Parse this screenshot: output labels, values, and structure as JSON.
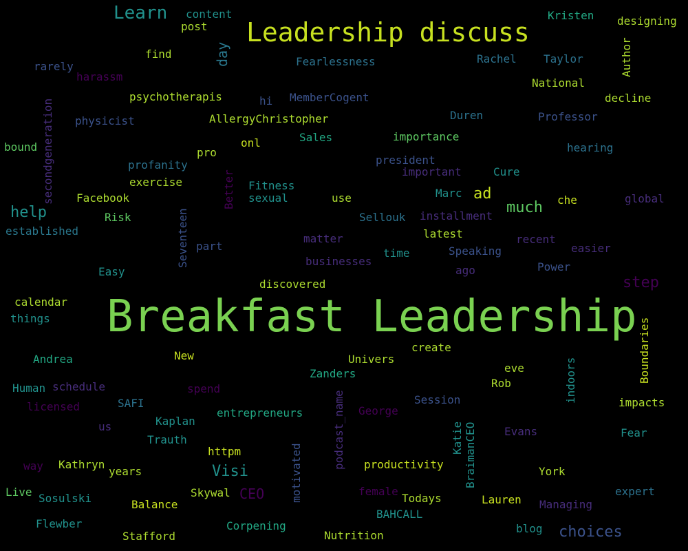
{
  "palette": {
    "lime": "#7ad151",
    "green": "#5ec962",
    "yellow": "#c7e020",
    "teal": "#21918c",
    "cyan": "#25858e",
    "blue": "#2c728e",
    "indigo": "#3b528b",
    "purple": "#472d7b",
    "violet": "#440154",
    "sea": "#2a788e",
    "mint": "#22a884",
    "light": "#addc30"
  },
  "words": [
    {
      "text": "Breakfast Leadership",
      "color": "lime",
      "size": 64
    },
    {
      "text": "Leadership discuss",
      "color": "yellow",
      "size": 38
    },
    {
      "text": "Learn",
      "color": "teal",
      "size": 26
    },
    {
      "text": "content",
      "color": "teal",
      "size": 16
    },
    {
      "text": "post",
      "color": "light",
      "size": 16
    },
    {
      "text": "Kristen",
      "color": "mint",
      "size": 16
    },
    {
      "text": "designing",
      "color": "light",
      "size": 16
    },
    {
      "text": "day",
      "color": "sea",
      "size": 20
    },
    {
      "text": "Author",
      "color": "light",
      "size": 16
    },
    {
      "text": "find",
      "color": "light",
      "size": 16
    },
    {
      "text": "rarely",
      "color": "indigo",
      "size": 16
    },
    {
      "text": "harassm",
      "color": "violet",
      "size": 16
    },
    {
      "text": "Fearlessness",
      "color": "blue",
      "size": 16
    },
    {
      "text": "Rachel",
      "color": "blue",
      "size": 16
    },
    {
      "text": "Taylor",
      "color": "blue",
      "size": 16
    },
    {
      "text": "National",
      "color": "light",
      "size": 16
    },
    {
      "text": "psychotherapis",
      "color": "light",
      "size": 16
    },
    {
      "text": "hi",
      "color": "indigo",
      "size": 16
    },
    {
      "text": "MemberCogent",
      "color": "indigo",
      "size": 16
    },
    {
      "text": "decline",
      "color": "light",
      "size": 16
    },
    {
      "text": "secondgeneration",
      "color": "purple",
      "size": 16
    },
    {
      "text": "physicist",
      "color": "indigo",
      "size": 16
    },
    {
      "text": "AllergyChristopher",
      "color": "light",
      "size": 16
    },
    {
      "text": "Duren",
      "color": "blue",
      "size": 16
    },
    {
      "text": "Professor",
      "color": "indigo",
      "size": 16
    },
    {
      "text": "bound",
      "color": "green",
      "size": 16
    },
    {
      "text": "onl",
      "color": "yellow",
      "size": 16
    },
    {
      "text": "Sales",
      "color": "mint",
      "size": 16
    },
    {
      "text": "importance",
      "color": "green",
      "size": 16
    },
    {
      "text": "hearing",
      "color": "blue",
      "size": 16
    },
    {
      "text": "pro",
      "color": "light",
      "size": 16
    },
    {
      "text": "president",
      "color": "indigo",
      "size": 16
    },
    {
      "text": "profanity",
      "color": "blue",
      "size": 16
    },
    {
      "text": "important",
      "color": "purple",
      "size": 16
    },
    {
      "text": "Cure",
      "color": "teal",
      "size": 16
    },
    {
      "text": "exercise",
      "color": "light",
      "size": 16
    },
    {
      "text": "Better",
      "color": "violet",
      "size": 16
    },
    {
      "text": "Fitness",
      "color": "teal",
      "size": 16
    },
    {
      "text": "Marc",
      "color": "teal",
      "size": 16
    },
    {
      "text": "ad",
      "color": "yellow",
      "size": 22
    },
    {
      "text": "help",
      "color": "teal",
      "size": 22
    },
    {
      "text": "Facebook",
      "color": "light",
      "size": 16
    },
    {
      "text": "sexual",
      "color": "teal",
      "size": 16
    },
    {
      "text": "use",
      "color": "light",
      "size": 16
    },
    {
      "text": "much",
      "color": "green",
      "size": 22
    },
    {
      "text": "che",
      "color": "yellow",
      "size": 16
    },
    {
      "text": "global",
      "color": "purple",
      "size": 16
    },
    {
      "text": "established",
      "color": "sea",
      "size": 16
    },
    {
      "text": "Risk",
      "color": "green",
      "size": 16
    },
    {
      "text": "Seventeen",
      "color": "indigo",
      "size": 16
    },
    {
      "text": "Sellouk",
      "color": "blue",
      "size": 16
    },
    {
      "text": "installment",
      "color": "purple",
      "size": 16
    },
    {
      "text": "part",
      "color": "indigo",
      "size": 16
    },
    {
      "text": "matter",
      "color": "purple",
      "size": 16
    },
    {
      "text": "latest",
      "color": "light",
      "size": 16
    },
    {
      "text": "recent",
      "color": "purple",
      "size": 16
    },
    {
      "text": "easier",
      "color": "purple",
      "size": 16
    },
    {
      "text": "businesses",
      "color": "purple",
      "size": 16
    },
    {
      "text": "time",
      "color": "teal",
      "size": 16
    },
    {
      "text": "Speaking",
      "color": "indigo",
      "size": 16
    },
    {
      "text": "Power",
      "color": "indigo",
      "size": 16
    },
    {
      "text": "ago",
      "color": "purple",
      "size": 16
    },
    {
      "text": "Easy",
      "color": "teal",
      "size": 16
    },
    {
      "text": "discovered",
      "color": "light",
      "size": 16
    },
    {
      "text": "step",
      "color": "violet",
      "size": 22
    },
    {
      "text": "calendar",
      "color": "light",
      "size": 16
    },
    {
      "text": "things",
      "color": "teal",
      "size": 16
    },
    {
      "text": "Boundaries",
      "color": "yellow",
      "size": 16
    },
    {
      "text": "create",
      "color": "light",
      "size": 16
    },
    {
      "text": "New",
      "color": "yellow",
      "size": 16
    },
    {
      "text": "Univers",
      "color": "light",
      "size": 16
    },
    {
      "text": "Andrea",
      "color": "mint",
      "size": 16
    },
    {
      "text": "eve",
      "color": "light",
      "size": 16
    },
    {
      "text": "Zanders",
      "color": "mint",
      "size": 16
    },
    {
      "text": "indoors",
      "color": "teal",
      "size": 16
    },
    {
      "text": "Human",
      "color": "teal",
      "size": 16
    },
    {
      "text": "schedule",
      "color": "purple",
      "size": 16
    },
    {
      "text": "spend",
      "color": "violet",
      "size": 16
    },
    {
      "text": "Rob",
      "color": "light",
      "size": 16
    },
    {
      "text": "licensed",
      "color": "violet",
      "size": 16
    },
    {
      "text": "SAFI",
      "color": "blue",
      "size": 16
    },
    {
      "text": "podcast_name",
      "color": "purple",
      "size": 16
    },
    {
      "text": "Session",
      "color": "indigo",
      "size": 16
    },
    {
      "text": "impacts",
      "color": "light",
      "size": 16
    },
    {
      "text": "Kaplan",
      "color": "teal",
      "size": 16
    },
    {
      "text": "entrepreneurs",
      "color": "mint",
      "size": 16
    },
    {
      "text": "George",
      "color": "violet",
      "size": 16
    },
    {
      "text": "us",
      "color": "purple",
      "size": 16
    },
    {
      "text": "Trauth",
      "color": "teal",
      "size": 16
    },
    {
      "text": "Katie",
      "color": "teal",
      "size": 16
    },
    {
      "text": "BraimanCEO",
      "color": "teal",
      "size": 16
    },
    {
      "text": "Evans",
      "color": "purple",
      "size": 16
    },
    {
      "text": "Fear",
      "color": "teal",
      "size": 16
    },
    {
      "text": "httpm",
      "color": "yellow",
      "size": 16
    },
    {
      "text": "motivated",
      "color": "indigo",
      "size": 16
    },
    {
      "text": "way",
      "color": "violet",
      "size": 16
    },
    {
      "text": "Kathryn",
      "color": "light",
      "size": 16
    },
    {
      "text": "years",
      "color": "light",
      "size": 16
    },
    {
      "text": "Visi",
      "color": "teal",
      "size": 22
    },
    {
      "text": "productivity",
      "color": "yellow",
      "size": 16
    },
    {
      "text": "York",
      "color": "light",
      "size": 16
    },
    {
      "text": "Live",
      "color": "green",
      "size": 16
    },
    {
      "text": "Sosulski",
      "color": "teal",
      "size": 16
    },
    {
      "text": "Skywal",
      "color": "light",
      "size": 16
    },
    {
      "text": "CEO",
      "color": "violet",
      "size": 20
    },
    {
      "text": "female",
      "color": "violet",
      "size": 16
    },
    {
      "text": "Todays",
      "color": "light",
      "size": 16
    },
    {
      "text": "Lauren",
      "color": "yellow",
      "size": 16
    },
    {
      "text": "expert",
      "color": "blue",
      "size": 16
    },
    {
      "text": "Balance",
      "color": "yellow",
      "size": 16
    },
    {
      "text": "Managing",
      "color": "purple",
      "size": 16
    },
    {
      "text": "BAHCALL",
      "color": "teal",
      "size": 16
    },
    {
      "text": "Flewber",
      "color": "teal",
      "size": 16
    },
    {
      "text": "Corpening",
      "color": "mint",
      "size": 16
    },
    {
      "text": "blog",
      "color": "teal",
      "size": 16
    },
    {
      "text": "choices",
      "color": "indigo",
      "size": 22
    },
    {
      "text": "Stafford",
      "color": "light",
      "size": 16
    },
    {
      "text": "Nutrition",
      "color": "light",
      "size": 16
    }
  ]
}
